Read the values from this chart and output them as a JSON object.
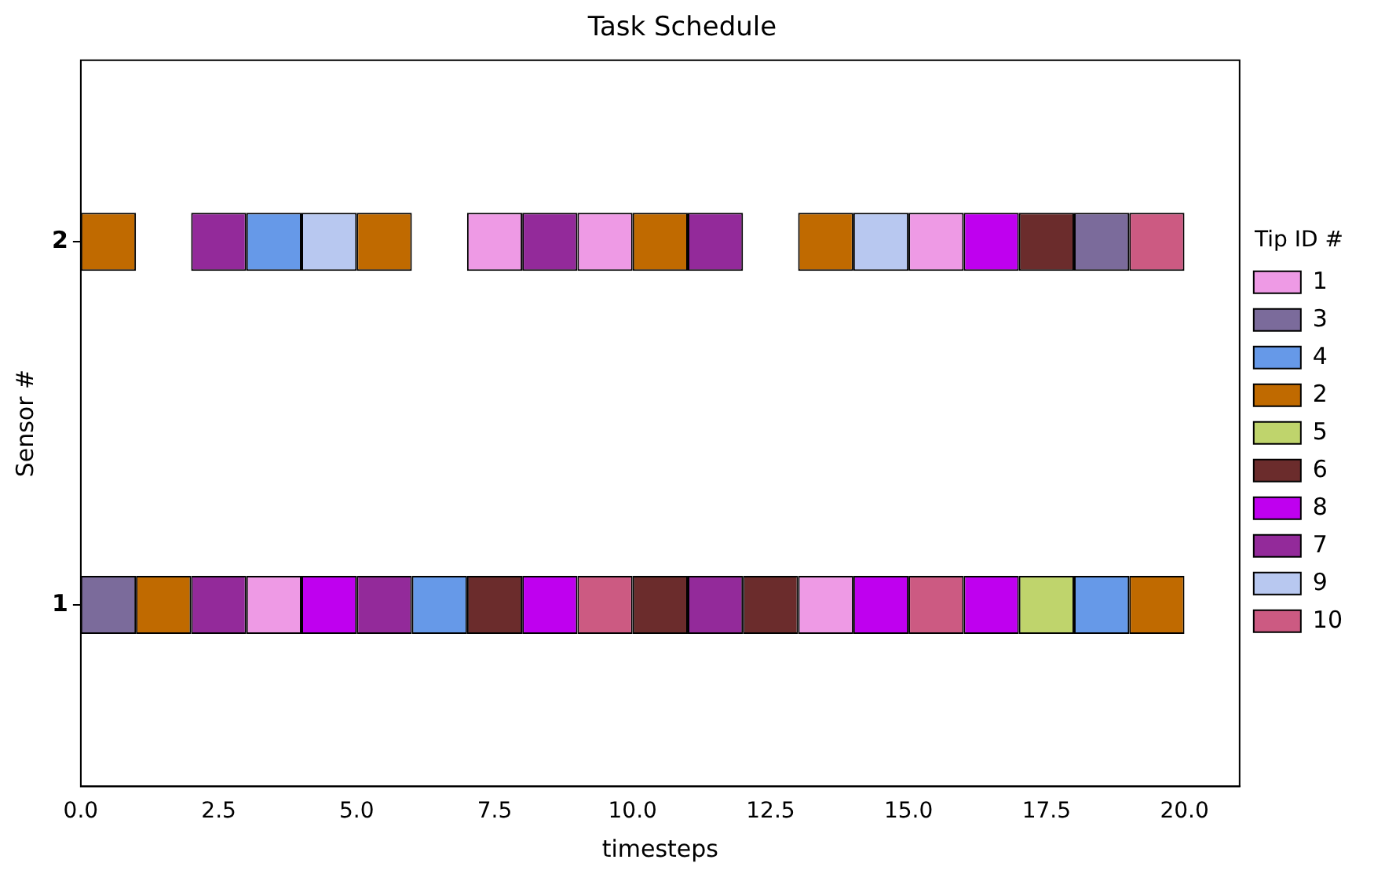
{
  "chart_data": {
    "type": "bar",
    "orientation": "horizontal",
    "title": "Task Schedule",
    "xlabel": "timesteps",
    "ylabel": "Sensor #",
    "legend_title": "Tip ID #",
    "legend": "right",
    "grid": false,
    "categories": [
      "2",
      "1"
    ],
    "xlim": [
      0,
      21
    ],
    "xticks": [
      {
        "value": 0,
        "label": "0.0"
      },
      {
        "value": 2.5,
        "label": "2.5"
      },
      {
        "value": 5,
        "label": "5.0"
      },
      {
        "value": 7.5,
        "label": "7.5"
      },
      {
        "value": 10,
        "label": "10.0"
      },
      {
        "value": 12.5,
        "label": "12.5"
      },
      {
        "value": 15,
        "label": "15.0"
      },
      {
        "value": 17.5,
        "label": "17.5"
      },
      {
        "value": 20,
        "label": "20.0"
      }
    ],
    "series": [
      {
        "name": "1",
        "color": "#ee9ae5",
        "base": [
          7,
          3
        ],
        "values": [
          1,
          1
        ]
      },
      {
        "name": "3",
        "color": "#7b6b9b",
        "base": [
          18,
          0
        ],
        "values": [
          1,
          1
        ]
      },
      {
        "name": "4",
        "color": "#6699e8",
        "base": [
          3,
          6
        ],
        "values": [
          1,
          1
        ]
      },
      {
        "name": "2",
        "color": "#c06a00",
        "base": [
          0,
          1
        ],
        "values": [
          1,
          1
        ]
      },
      {
        "name": "5",
        "color": "#bfd46c",
        "base": [
          null,
          17
        ],
        "values": [
          null,
          1
        ]
      },
      {
        "name": "6",
        "color": "#6b2c2c",
        "base": [
          17,
          7
        ],
        "values": [
          1,
          1
        ]
      },
      {
        "name": "8",
        "color": "#bf00ef",
        "base": [
          16,
          4
        ],
        "values": [
          1,
          1
        ]
      },
      {
        "name": "7",
        "color": "#932a9a",
        "base": [
          2,
          2
        ],
        "values": [
          1,
          1
        ]
      },
      {
        "name": "9",
        "color": "#b8c8f0",
        "base": [
          4,
          null
        ],
        "values": [
          1,
          null
        ]
      },
      {
        "name": "10",
        "color": "#cc5a82",
        "base": [
          19,
          9
        ],
        "values": [
          1,
          1
        ]
      },
      {
        "color": "#ee9ae5",
        "base": [
          9,
          13
        ],
        "values": [
          1,
          1
        ]
      },
      {
        "color": "#ee9ae5",
        "base": [
          15,
          null
        ],
        "values": [
          1,
          null
        ]
      },
      {
        "color": "#6699e8",
        "base": [
          null,
          18
        ],
        "values": [
          null,
          1
        ]
      },
      {
        "color": "#c06a00",
        "base": [
          5,
          19
        ],
        "values": [
          1,
          1
        ]
      },
      {
        "color": "#c06a00",
        "base": [
          10,
          null
        ],
        "values": [
          1,
          null
        ]
      },
      {
        "color": "#c06a00",
        "base": [
          13,
          null
        ],
        "values": [
          1,
          null
        ]
      },
      {
        "color": "#6b2c2c",
        "base": [
          null,
          10
        ],
        "values": [
          null,
          1
        ]
      },
      {
        "color": "#6b2c2c",
        "base": [
          null,
          12
        ],
        "values": [
          null,
          1
        ]
      },
      {
        "color": "#bf00ef",
        "base": [
          null,
          8
        ],
        "values": [
          null,
          1
        ]
      },
      {
        "color": "#bf00ef",
        "base": [
          null,
          14
        ],
        "values": [
          null,
          1
        ]
      },
      {
        "color": "#bf00ef",
        "base": [
          null,
          16
        ],
        "values": [
          null,
          1
        ]
      },
      {
        "color": "#932a9a",
        "base": [
          8,
          5
        ],
        "values": [
          1,
          1
        ]
      },
      {
        "color": "#932a9a",
        "base": [
          11,
          11
        ],
        "values": [
          1,
          1
        ]
      },
      {
        "color": "#b8c8f0",
        "base": [
          14,
          null
        ],
        "values": [
          1,
          null
        ]
      },
      {
        "color": "#cc5a82",
        "base": [
          null,
          15
        ],
        "values": [
          null,
          1
        ]
      }
    ]
  }
}
